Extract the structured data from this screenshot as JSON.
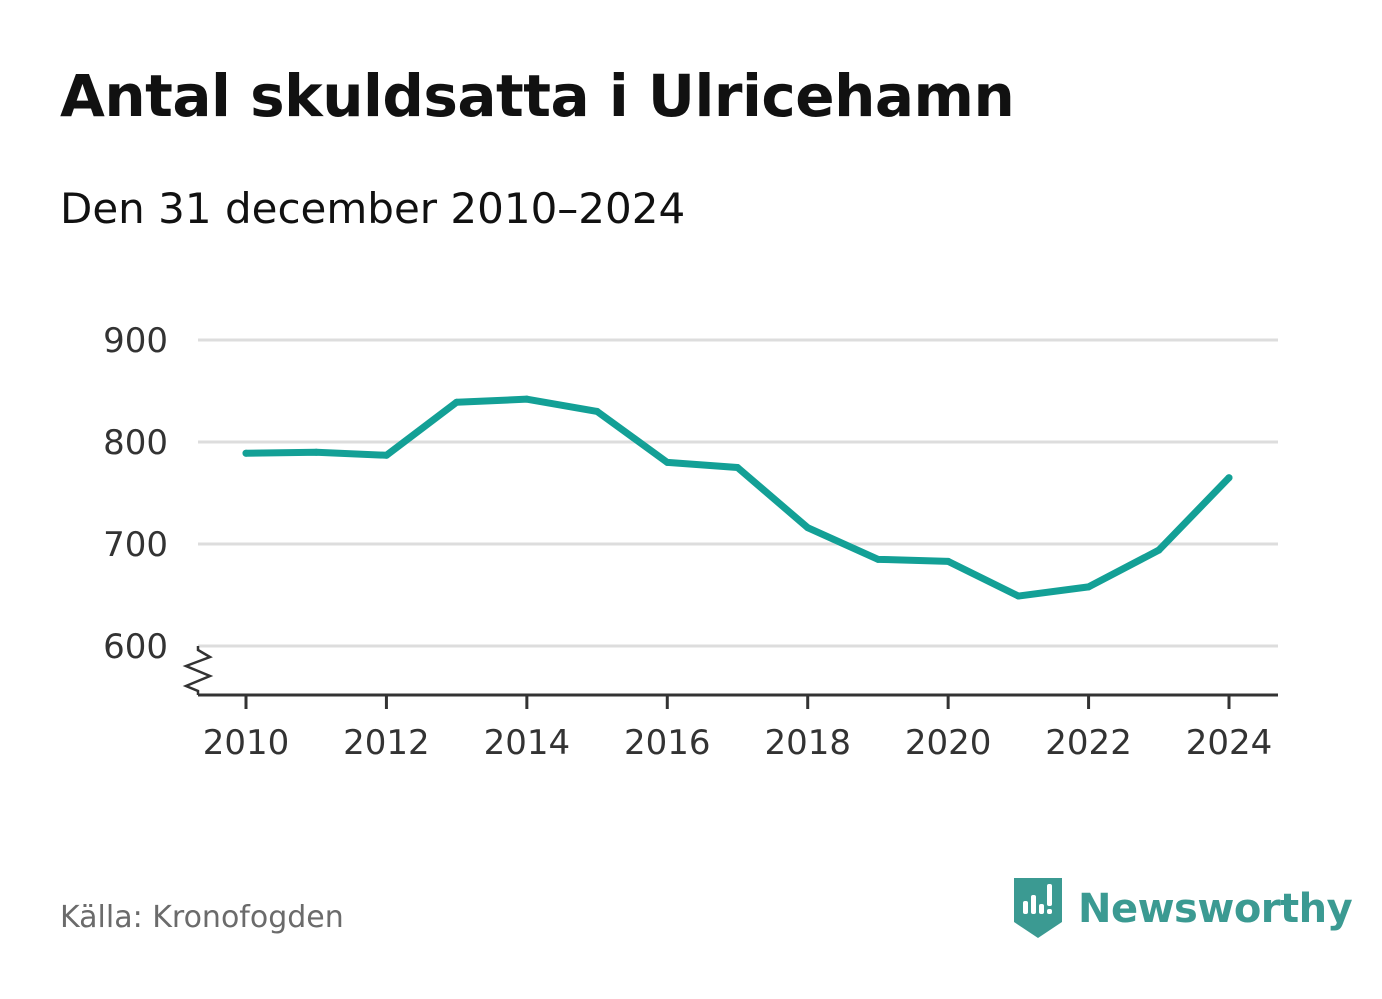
{
  "title": "Antal skuldsatta i Ulricehamn",
  "subtitle": "Den 31 december 2010–2024",
  "source": "Källa: Kronofogden",
  "brand": {
    "name": "Newsworthy",
    "icon": "newsworthy-logo-icon",
    "color": "#3b9a92"
  },
  "colors": {
    "line": "#13a096",
    "grid": "#dddddd",
    "axis": "#333333"
  },
  "chart_data": {
    "type": "line",
    "title": "Antal skuldsatta i Ulricehamn",
    "subtitle": "Den 31 december 2010–2024",
    "xlabel": "",
    "ylabel": "",
    "x": [
      2010,
      2011,
      2012,
      2013,
      2014,
      2015,
      2016,
      2017,
      2018,
      2019,
      2020,
      2021,
      2022,
      2023,
      2024
    ],
    "series": [
      {
        "name": "Antal skuldsatta",
        "values": [
          789,
          790,
          787,
          839,
          842,
          830,
          780,
          775,
          716,
          685,
          683,
          649,
          658,
          694,
          765
        ]
      }
    ],
    "xticks": [
      "2010",
      "2012",
      "2014",
      "2016",
      "2018",
      "2020",
      "2022",
      "2024"
    ],
    "yticks": [
      "600",
      "700",
      "800",
      "900"
    ],
    "ylim": [
      552,
      900
    ],
    "xlim": [
      2010,
      2024
    ],
    "y_axis_break": true,
    "grid": "horizontal",
    "legend": "none"
  }
}
